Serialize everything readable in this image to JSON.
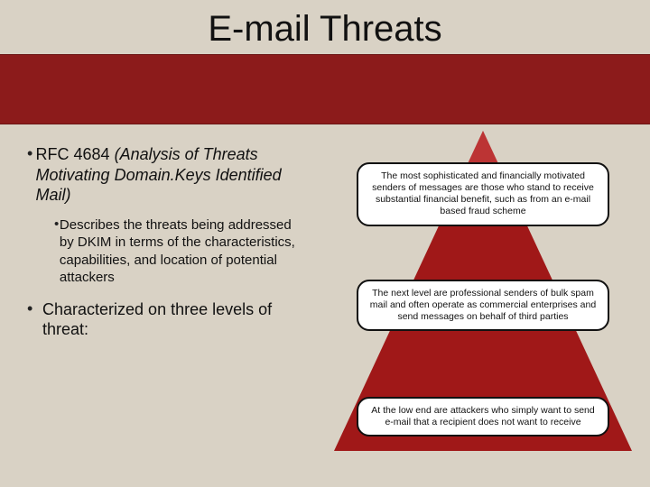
{
  "title": "E-mail Threats",
  "left": {
    "bullet1_prefix": "RFC 4684 ",
    "bullet1_italic": "(Analysis of Threats Motivating Domain.Keys Identified Mail)",
    "bullet2": "Describes the threats being addressed by DKIM in terms of the characteristics, capabilities, and location of potential attackers",
    "bullet3": "Characterized on three levels of threat:"
  },
  "pyramid": {
    "triangle_color": "#a01818",
    "callouts": {
      "top": "The most sophisticated and financially motivated senders of messages are those who stand to receive substantial financial benefit, such as from an e-mail based fraud scheme",
      "middle": "The next level are professional senders of bulk spam mail and often operate as commercial enterprises and send messages on behalf of third parties",
      "bottom": "At the low end are attackers who simply want to send e-mail that a recipient does not want to receive"
    }
  },
  "colors": {
    "background": "#d9d2c5",
    "title_bar": "#8c1b1b",
    "callout_bg": "#ffffff",
    "callout_border": "#111111"
  }
}
